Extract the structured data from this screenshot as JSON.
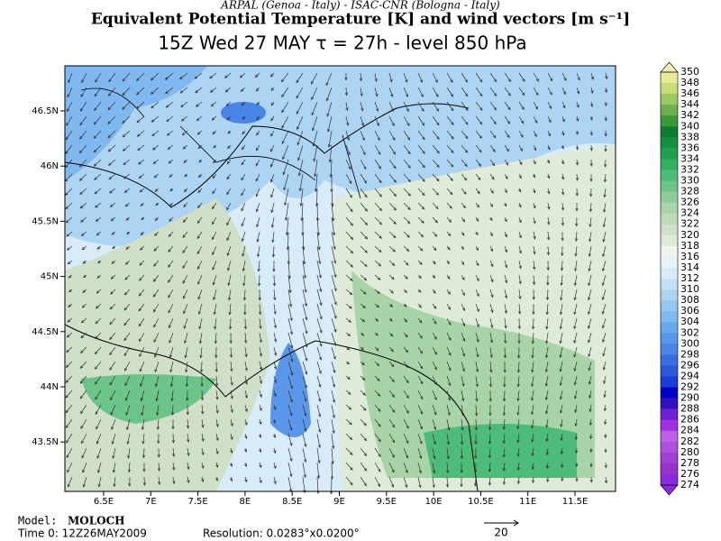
{
  "header": {
    "source": "ARPAL (Genoa - Italy)  -  ISAC-CNR (Bologna - Italy)",
    "title": "Equivalent Potential Temperature [K] and wind vectors [m s⁻¹]",
    "subtitle": "15Z Wed 27 MAY   τ = 27h   -   level 850 hPa"
  },
  "map": {
    "lon_labels": [
      "6.5E",
      "7E",
      "7.5E",
      "8E",
      "8.5E",
      "9E",
      "9.5E",
      "10E",
      "10.5E",
      "11E",
      "11.5E"
    ],
    "lat_labels": [
      "46.5N",
      "46N",
      "45.5N",
      "45N",
      "44.5N",
      "44N",
      "43.5N"
    ]
  },
  "colorbar": {
    "labels": [
      350,
      348,
      346,
      344,
      342,
      340,
      338,
      336,
      334,
      332,
      330,
      328,
      326,
      324,
      322,
      320,
      318,
      316,
      314,
      312,
      310,
      308,
      306,
      304,
      302,
      300,
      298,
      296,
      294,
      292,
      290,
      288,
      286,
      284,
      282,
      280,
      278,
      276,
      274
    ],
    "colors": [
      "#e8ec98",
      "#c8dc78",
      "#9cc860",
      "#6ab050",
      "#3a9a3a",
      "#0c7c34",
      "#159040",
      "#20a050",
      "#30b060",
      "#4cbc78",
      "#6cc488",
      "#8ccc98",
      "#a8d4a8",
      "#bedab8",
      "#d0e0c8",
      "#e0ead8",
      "#f0f4ee",
      "#e8f3f8",
      "#d8ebf8",
      "#c4e0f6",
      "#aed4f4",
      "#96c6f2",
      "#80b8f0",
      "#6aa8ee",
      "#5a96ea",
      "#4a84e6",
      "#3a6ee0",
      "#2a5ad8",
      "#1a3cd8",
      "#0000c8",
      "#3010c0",
      "#7020d0",
      "#a030e0",
      "#c060e8",
      "#b050e0",
      "#a040d8",
      "#9932cc",
      "#8a2be2"
    ],
    "over_color": "#f8f0b8",
    "under_color": "#8a2be2"
  },
  "footer": {
    "model_label": "Model:",
    "model": "MOLOCH",
    "time0": "Time 0: 12Z26MAY2009",
    "resolution": "Resolution: 0.0283°x0.0200°",
    "vector_scale": "20"
  }
}
